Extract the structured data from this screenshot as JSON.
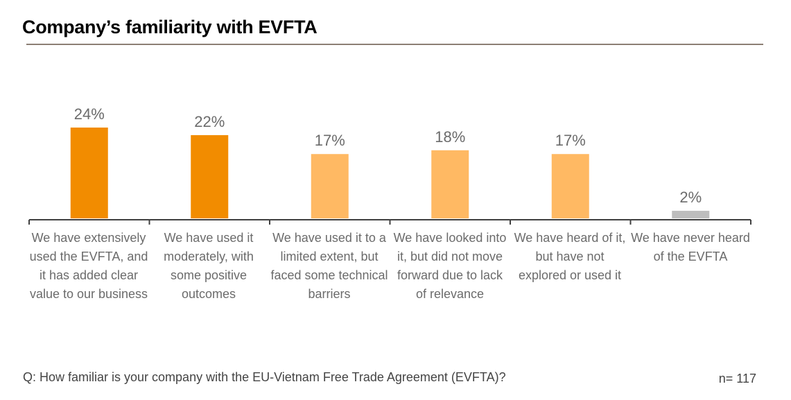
{
  "title": "Company’s familiarity with EVFTA",
  "question": "Q: How familiar is your company with the EU-Vietnam Free Trade Agreement (EVFTA)?",
  "sample_size": "n= 117",
  "colors": {
    "dark_orange": "#f28c00",
    "light_orange": "#ffb963",
    "grey": "#bdbdbd",
    "axis": "#404040",
    "label": "#6b6b6b"
  },
  "chart_data": {
    "type": "bar",
    "title": "Company’s familiarity with EVFTA",
    "xlabel": "",
    "ylabel": "",
    "ylim": [
      0,
      24
    ],
    "grid": false,
    "categories": [
      "We have extensively used the EVFTA, and it has added clear value to our business",
      "We have used it moderately, with some positive outcomes",
      "We have used it to a limited extent, but faced some technical barriers",
      "We have looked into it, but did not move forward due to lack of relevance",
      "We have heard of it, but have not explored or used it",
      "We have never heard of the EVFTA"
    ],
    "values": [
      24,
      22,
      17,
      18,
      17,
      2
    ],
    "value_labels": [
      "24%",
      "22%",
      "17%",
      "18%",
      "17%",
      "2%"
    ],
    "bar_colors": [
      "#f28c00",
      "#f28c00",
      "#ffb963",
      "#ffb963",
      "#ffb963",
      "#bdbdbd"
    ]
  }
}
